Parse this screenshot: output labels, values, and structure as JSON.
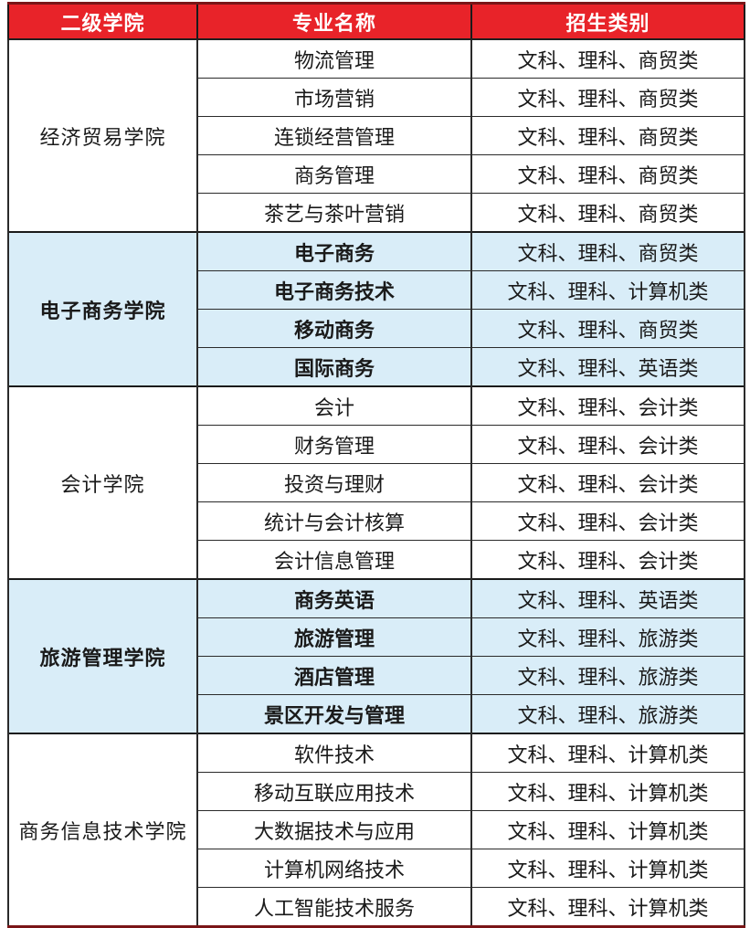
{
  "colors": {
    "header_bg": "#E82329",
    "header_text": "#FFFFFF",
    "band_blue": "#D9EDF8",
    "band_white": "#FFFFFF",
    "outer_border_red": "#7A1517",
    "grid_line": "#1A1A1A",
    "cell_text": "#1A1A1A"
  },
  "table": {
    "columns": [
      "二级学院",
      "专业名称",
      "招生类别"
    ],
    "groups": [
      {
        "college": "经济贸易学院",
        "band": "white",
        "majors": [
          {
            "name": "物流管理",
            "categories": "文科、理科、商贸类"
          },
          {
            "name": "市场营销",
            "categories": "文科、理科、商贸类"
          },
          {
            "name": "连锁经营管理",
            "categories": "文科、理科、商贸类"
          },
          {
            "name": "商务管理",
            "categories": "文科、理科、商贸类"
          },
          {
            "name": "茶艺与茶叶营销",
            "categories": "文科、理科、商贸类"
          }
        ]
      },
      {
        "college": "电子商务学院",
        "band": "blue",
        "majors": [
          {
            "name": "电子商务",
            "categories": "文科、理科、商贸类"
          },
          {
            "name": "电子商务技术",
            "categories": "文科、理科、计算机类"
          },
          {
            "name": "移动商务",
            "categories": "文科、理科、商贸类"
          },
          {
            "name": "国际商务",
            "categories": "文科、理科、英语类"
          }
        ]
      },
      {
        "college": "会计学院",
        "band": "white",
        "majors": [
          {
            "name": "会计",
            "categories": "文科、理科、会计类"
          },
          {
            "name": "财务管理",
            "categories": "文科、理科、会计类"
          },
          {
            "name": "投资与理财",
            "categories": "文科、理科、会计类"
          },
          {
            "name": "统计与会计核算",
            "categories": "文科、理科、会计类"
          },
          {
            "name": "会计信息管理",
            "categories": "文科、理科、会计类"
          }
        ]
      },
      {
        "college": "旅游管理学院",
        "band": "blue",
        "majors": [
          {
            "name": "商务英语",
            "categories": "文科、理科、英语类"
          },
          {
            "name": "旅游管理",
            "categories": "文科、理科、旅游类"
          },
          {
            "name": "酒店管理",
            "categories": "文科、理科、旅游类"
          },
          {
            "name": "景区开发与管理",
            "categories": "文科、理科、旅游类"
          }
        ]
      },
      {
        "college": "商务信息技术学院",
        "band": "white",
        "majors": [
          {
            "name": "软件技术",
            "categories": "文科、理科、计算机类"
          },
          {
            "name": "移动互联应用技术",
            "categories": "文科、理科、计算机类"
          },
          {
            "name": "大数据技术与应用",
            "categories": "文科、理科、计算机类"
          },
          {
            "name": "计算机网络技术",
            "categories": "文科、理科、计算机类"
          },
          {
            "name": "人工智能技术服务",
            "categories": "文科、理科、计算机类"
          }
        ]
      }
    ]
  }
}
